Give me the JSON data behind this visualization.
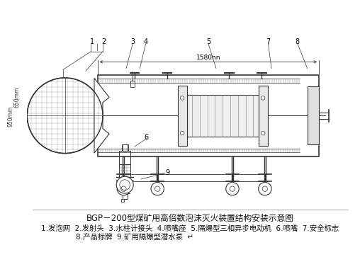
{
  "title": "BGP－200型煤矿用高倍数泡沫灭火装置结构安装示意图",
  "caption_line1": "1.发泡网  2.发射头  3.水柱计接头  4.喷嘴座  5.隔爆型三相异步电动机  6.喷嘴  7.安全标志",
  "caption_line2": "8.产品标牌  9.矿用隔爆型潜水泵  ↵",
  "bg_color": "#ffffff",
  "line_color": "#333333",
  "dim_label": "1580nn",
  "size_650": "650mm",
  "size_950": "950mm",
  "title_fontsize": 8.5,
  "caption_fontsize": 7.5,
  "label_fontsize": 7
}
